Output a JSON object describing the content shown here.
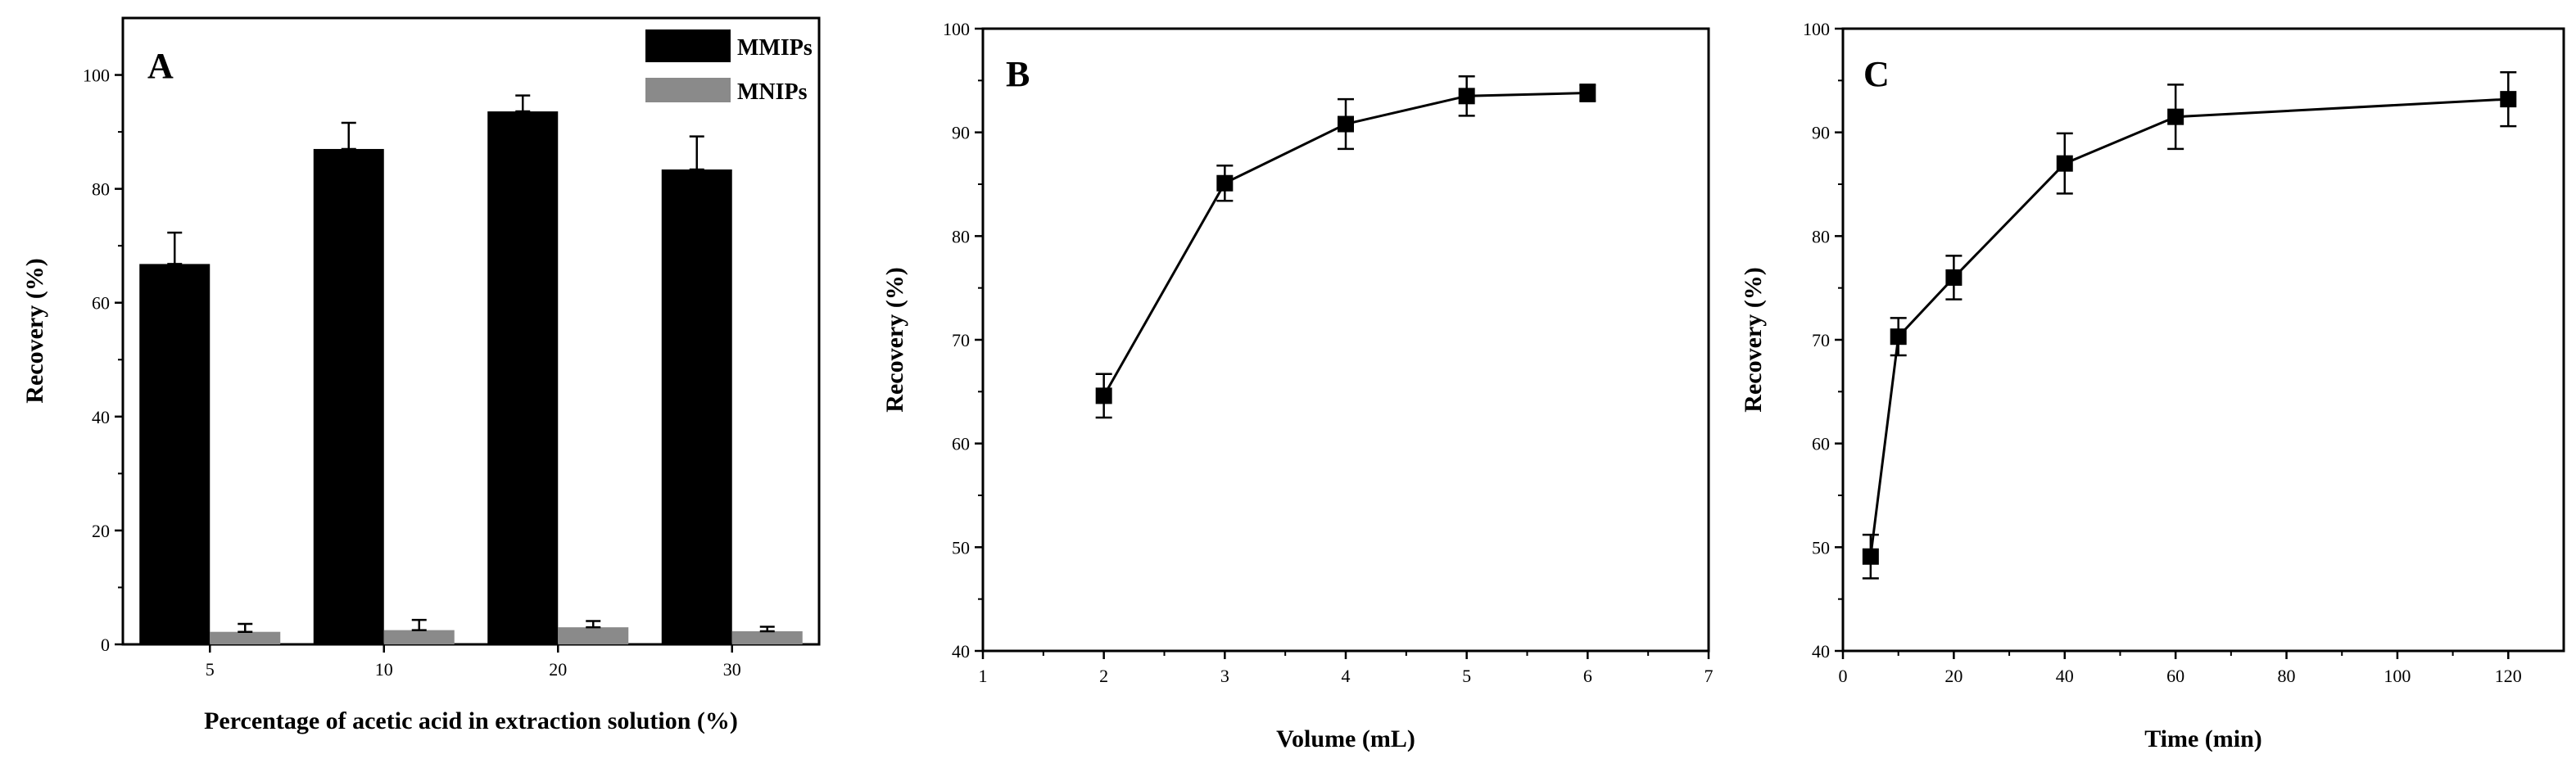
{
  "chart_data": [
    {
      "type": "bar",
      "panel_label": "A",
      "title": "",
      "xlabel": "Percentage of acetic acid in extraction solution (%)",
      "ylabel": "Recovery (%)",
      "categories": [
        "5",
        "10",
        "20",
        "30"
      ],
      "ylim": [
        0,
        110
      ],
      "yticks": [
        "0",
        "20",
        "40",
        "60",
        "80",
        "100"
      ],
      "grid": false,
      "legend_position": "top-right",
      "series": [
        {
          "name": "MMIPs",
          "color": "#000000",
          "values": [
            66.8,
            87.0,
            93.6,
            83.4
          ],
          "errors": [
            5.5,
            4.6,
            2.8,
            5.8
          ]
        },
        {
          "name": "MNIPs",
          "color": "#8a8a8a",
          "values": [
            2.2,
            2.5,
            3.0,
            2.3
          ],
          "errors": [
            1.4,
            1.8,
            1.1,
            0.8
          ]
        }
      ]
    },
    {
      "type": "line",
      "panel_label": "B",
      "title": "",
      "xlabel": "Volume (mL)",
      "ylabel": "Recovery (%)",
      "xlim": [
        1,
        7
      ],
      "ylim": [
        40,
        100
      ],
      "xticks": [
        "1",
        "2",
        "3",
        "4",
        "5",
        "6",
        "7"
      ],
      "yticks": [
        "40",
        "50",
        "60",
        "70",
        "80",
        "90",
        "100"
      ],
      "grid": false,
      "series": [
        {
          "name": "Recovery",
          "color": "#000000",
          "x": [
            2,
            3,
            4,
            5,
            6
          ],
          "y": [
            64.6,
            85.1,
            90.8,
            93.5,
            93.8
          ],
          "errors": [
            2.1,
            1.7,
            2.4,
            1.9,
            0.8
          ]
        }
      ]
    },
    {
      "type": "line",
      "panel_label": "C",
      "title": "",
      "xlabel": "Time (min)",
      "ylabel": "Recovery (%)",
      "xlim": [
        0,
        130
      ],
      "ylim": [
        40,
        100
      ],
      "xticks": [
        "0",
        "20",
        "40",
        "60",
        "80",
        "100",
        "120"
      ],
      "yticks": [
        "40",
        "50",
        "60",
        "70",
        "80",
        "90",
        "100"
      ],
      "grid": false,
      "series": [
        {
          "name": "Recovery",
          "color": "#000000",
          "x": [
            5,
            10,
            20,
            40,
            60,
            120
          ],
          "y": [
            49.1,
            70.3,
            76.0,
            87.0,
            91.5,
            93.2
          ],
          "errors": [
            2.1,
            1.8,
            2.1,
            2.9,
            3.1,
            2.6
          ]
        }
      ]
    }
  ]
}
